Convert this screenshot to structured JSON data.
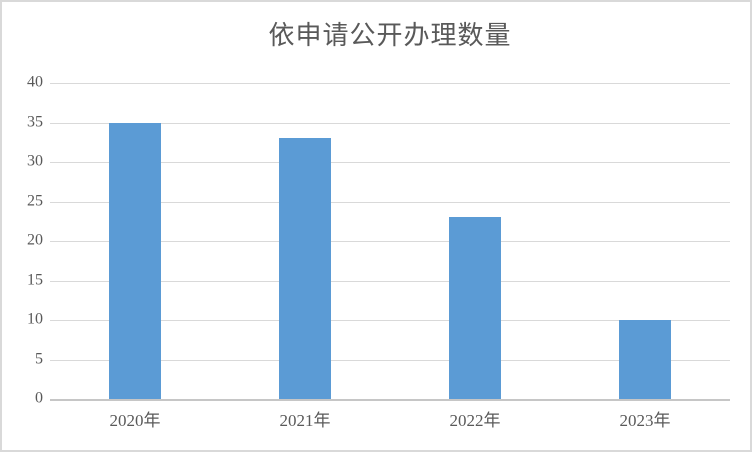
{
  "chart_data": {
    "type": "bar",
    "title": "依申请公开办理数量",
    "categories": [
      "2020年",
      "2021年",
      "2022年",
      "2023年"
    ],
    "values": [
      35,
      33,
      23,
      10
    ],
    "xlabel": "",
    "ylabel": "",
    "ylim": [
      0,
      40
    ],
    "ytick_step": 5,
    "yticks": [
      0,
      5,
      10,
      15,
      20,
      25,
      30,
      35,
      40
    ],
    "grid": true,
    "legend_position": "none",
    "colors": {
      "bar": "#5b9bd5",
      "gridline": "#d9d9d9",
      "axis_line": "#c6c6c6",
      "text": "#595959",
      "border": "#d9d9d9",
      "background": "#ffffff"
    }
  }
}
